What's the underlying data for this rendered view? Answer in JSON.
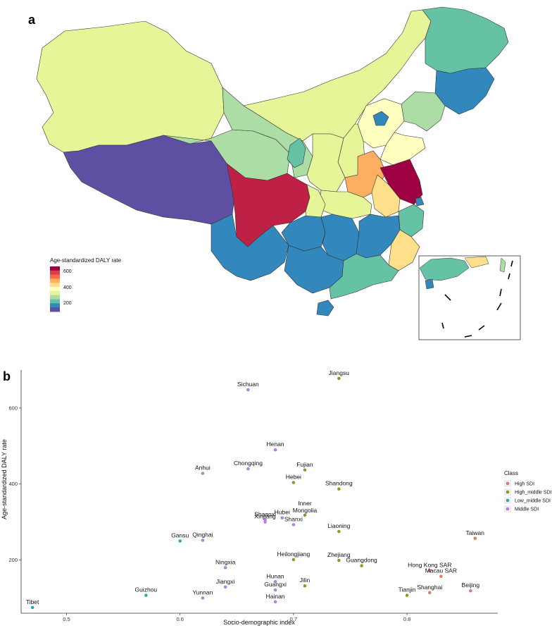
{
  "panel_a": {
    "label": "a",
    "legend": {
      "title": "Age-standardized DALY rate",
      "ticks": [
        "600",
        "400",
        "200"
      ],
      "colors": [
        "#9e0142",
        "#d53e4f",
        "#f46d43",
        "#fdae61",
        "#fee08b",
        "#ffffbf",
        "#e6f598",
        "#abdda4",
        "#66c2a5",
        "#3288bd",
        "#5e4fa2"
      ]
    }
  },
  "panel_b": {
    "label": "b"
  },
  "chart_data": {
    "type": "scatter",
    "xlabel": "Socio-demographic index",
    "ylabel": "Age-standardized DALY rate",
    "xticks": [
      "0.5",
      "0.6",
      "0.7",
      "0.8"
    ],
    "yticks": [
      "200",
      "400",
      "600"
    ],
    "xlim": [
      0.46,
      0.88
    ],
    "ylim": [
      60,
      700
    ],
    "legend": {
      "title": "Class",
      "placement": "right",
      "entries": [
        {
          "name": "High SDI",
          "color": "#f8766d"
        },
        {
          "name": "High_middle SDI",
          "color": "#7cae00"
        },
        {
          "name": "Low_middle SDI",
          "color": "#00bfc4"
        },
        {
          "name": "Middle SDI",
          "color": "#c77cff"
        }
      ]
    },
    "points": [
      {
        "name": "Jiangsu",
        "x": 0.74,
        "y": 678,
        "cls": 1
      },
      {
        "name": "Sichuan",
        "x": 0.66,
        "y": 648,
        "cls": 3
      },
      {
        "name": "Henan",
        "x": 0.684,
        "y": 490,
        "cls": 3
      },
      {
        "name": "Fujian",
        "x": 0.71,
        "y": 437,
        "cls": 1
      },
      {
        "name": "Chongqing",
        "x": 0.66,
        "y": 440,
        "cls": 3
      },
      {
        "name": "Anhui",
        "x": 0.62,
        "y": 428,
        "cls": 3
      },
      {
        "name": "Hebei",
        "x": 0.7,
        "y": 404,
        "cls": 1
      },
      {
        "name": "Shandong",
        "x": 0.74,
        "y": 387,
        "cls": 1
      },
      {
        "name": "Inner Mongolia",
        "x": 0.71,
        "y": 318,
        "cls": 1
      },
      {
        "name": "Hubei",
        "x": 0.69,
        "y": 311,
        "cls": 3
      },
      {
        "name": "Shaanxi",
        "x": 0.675,
        "y": 306,
        "cls": 3
      },
      {
        "name": "Xinjiang",
        "x": 0.675,
        "y": 300,
        "cls": 3
      },
      {
        "name": "Shanxi",
        "x": 0.7,
        "y": 293,
        "cls": 3
      },
      {
        "name": "Liaoning",
        "x": 0.74,
        "y": 275,
        "cls": 1
      },
      {
        "name": "Taiwan",
        "x": 0.86,
        "y": 257,
        "cls": 0
      },
      {
        "name": "Gansu",
        "x": 0.6,
        "y": 250,
        "cls": 2
      },
      {
        "name": "Qinghai",
        "x": 0.62,
        "y": 252,
        "cls": 3
      },
      {
        "name": "Heilongjiang",
        "x": 0.7,
        "y": 201,
        "cls": 1
      },
      {
        "name": "Zhejiang",
        "x": 0.74,
        "y": 199,
        "cls": 1
      },
      {
        "name": "Guangdong",
        "x": 0.76,
        "y": 185,
        "cls": 1
      },
      {
        "name": "Hong Kong SAR",
        "x": 0.82,
        "y": 172,
        "cls": 0
      },
      {
        "name": "Ningxia",
        "x": 0.64,
        "y": 180,
        "cls": 3
      },
      {
        "name": "Macau SAR",
        "x": 0.83,
        "y": 157,
        "cls": 0
      },
      {
        "name": "Hunan",
        "x": 0.684,
        "y": 143,
        "cls": 3
      },
      {
        "name": "Jilin",
        "x": 0.71,
        "y": 132,
        "cls": 1
      },
      {
        "name": "Jiangxi",
        "x": 0.64,
        "y": 129,
        "cls": 3
      },
      {
        "name": "Guangxi",
        "x": 0.684,
        "y": 121,
        "cls": 3
      },
      {
        "name": "Beijing",
        "x": 0.856,
        "y": 119,
        "cls": 0
      },
      {
        "name": "Tianjin",
        "x": 0.8,
        "y": 107,
        "cls": 1
      },
      {
        "name": "Shanghai",
        "x": 0.82,
        "y": 114,
        "cls": 0
      },
      {
        "name": "Guizhou",
        "x": 0.57,
        "y": 107,
        "cls": 2
      },
      {
        "name": "Yunnan",
        "x": 0.62,
        "y": 100,
        "cls": 3
      },
      {
        "name": "Hainan",
        "x": 0.684,
        "y": 90,
        "cls": 3
      },
      {
        "name": "Tibet",
        "x": 0.47,
        "y": 75,
        "cls": 2
      }
    ]
  }
}
